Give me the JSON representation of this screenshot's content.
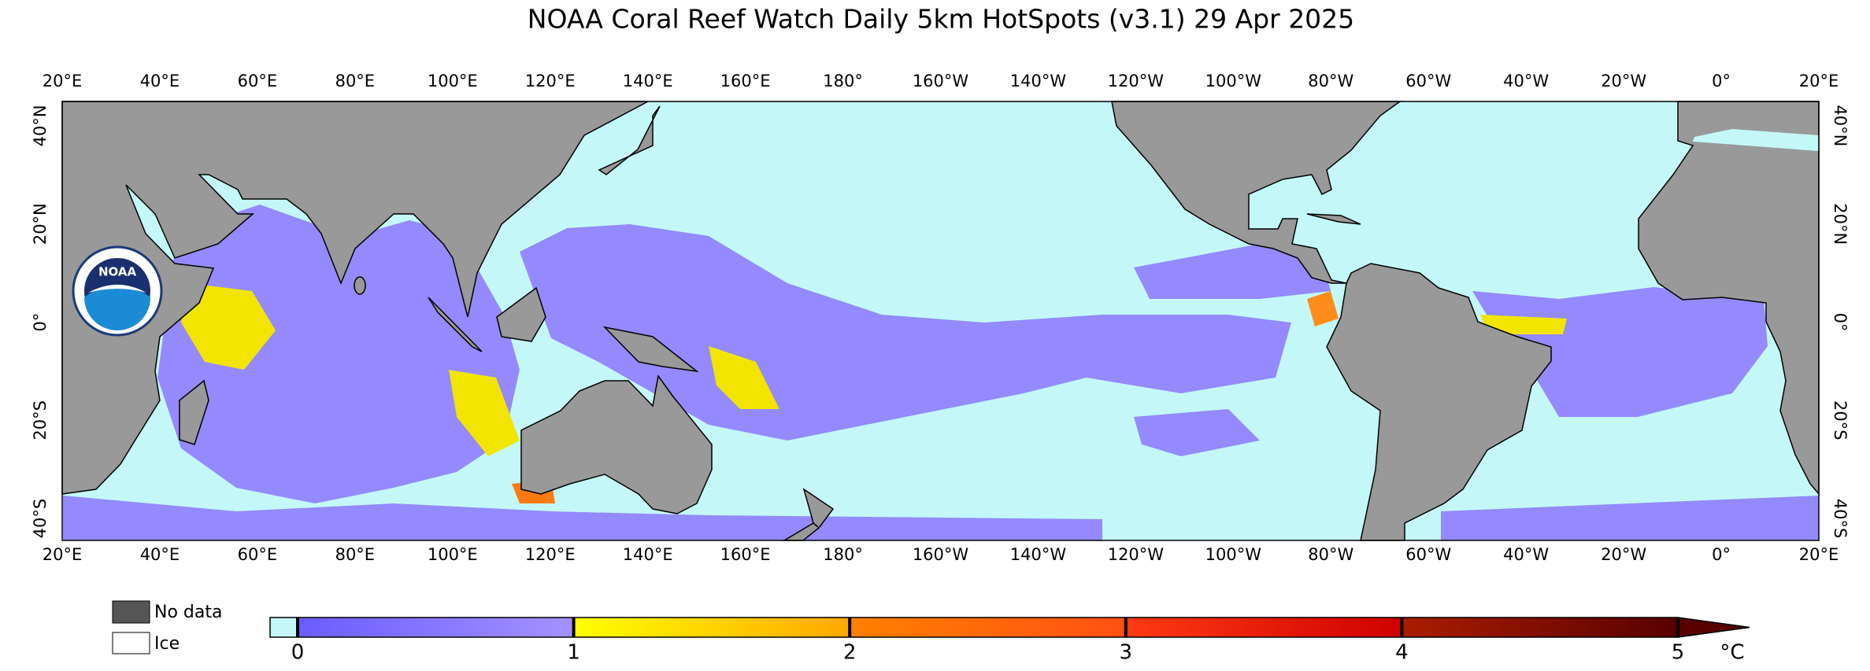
{
  "title": "NOAA Coral Reef Watch Daily 5km HotSpots  (v3.1)   29 Apr 2025",
  "longitude_labels": [
    "20°E",
    "40°E",
    "60°E",
    "80°E",
    "100°E",
    "120°E",
    "140°E",
    "160°E",
    "180°",
    "160°W",
    "140°W",
    "120°W",
    "100°W",
    "80°W",
    "60°W",
    "40°W",
    "20°W",
    "0°",
    "20°E"
  ],
  "latitude_labels": [
    "40°N",
    "20°N",
    "0°",
    "20°S",
    "40°S"
  ],
  "logo": {
    "text": "NOAA"
  },
  "legend": {
    "no_data": "No data",
    "ice": "Ice"
  },
  "colorbar": {
    "lim": [
      0,
      5
    ],
    "ticks": [
      0,
      1,
      2,
      3,
      4,
      5
    ],
    "unit": "°C",
    "colors": [
      "#6a5cff",
      "#a592ff",
      "#ffff00",
      "#ffa800",
      "#ff8000",
      "#ff5014",
      "#ff3a14",
      "#cf0000",
      "#aa1d00",
      "#580000"
    ]
  }
}
